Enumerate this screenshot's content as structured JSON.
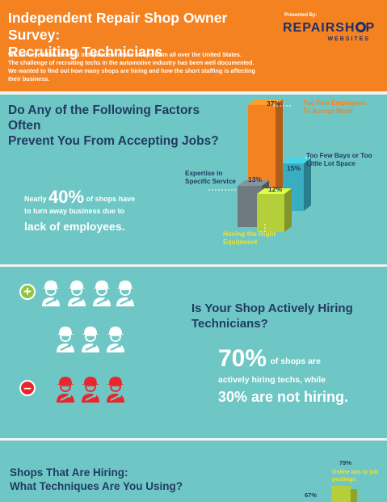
{
  "header": {
    "title_line1": "Independent Repair Shop Owner Survey:",
    "title_line2": "Recruiting Technicians",
    "intro_line1": "We surveyed 160 General independent repair shops from all over the United States.",
    "intro_line2": "The challenge of recruiting techs in the automotive industry has been well documented.",
    "intro_line3": "We wanted to find out how many shops are hiring and how the short staffing is affecting",
    "intro_line4": "their business.",
    "logo_presented": "Presented By:",
    "logo_name_a": "REPAIRSH",
    "logo_name_b": "P",
    "logo_sub": "WEBSITES"
  },
  "section1": {
    "question_line1": "Do Any of the Following Factors Often",
    "question_line2": "Prevent You From Accepting Jobs?",
    "stat_prefix": "Nearly",
    "stat_value": "40%",
    "stat_suffix": "of shops have",
    "stat_line2": "to turn away business due to",
    "stat_line3": "lack of employees."
  },
  "chart_data": {
    "type": "bar",
    "categories": [
      "Too Few Employees To Accept Work",
      "Too Few Bays or Too Little Lot Space",
      "Expertise in Specific Service",
      "Having the Right Equipment"
    ],
    "values": [
      37,
      15,
      13,
      12
    ],
    "value_labels": [
      "37%",
      "15%",
      "13%",
      "12%"
    ],
    "label_lines": [
      [
        "Too Few Employees",
        "To Accept Work"
      ],
      [
        "Too Few Bays or Too",
        "Little Lot Space"
      ],
      [
        "Expertise in",
        "Specific Service"
      ],
      [
        "Having the Right",
        "Equipment"
      ]
    ],
    "colors": [
      "#f58220",
      "#3aaec1",
      "#6d7a7f",
      "#b5cf3a"
    ],
    "label_colors": [
      "#f58220",
      "#233a63",
      "#233a63",
      "#f7e11b"
    ],
    "ylim": [
      0,
      37
    ]
  },
  "section2": {
    "plus_sign": "+",
    "minus_sign": "–",
    "hiring_share": 0.7,
    "hiring_icon_count": 7,
    "not_hiring_icon_count": 3,
    "question_line1": "Is Your Shop Actively Hiring",
    "question_line2": "Technicians?",
    "stat_value": "70%",
    "stat_suffix": "of shops are",
    "stat_line2": "actively hiring techs, while",
    "stat_line3": "30% are not hiring.",
    "hiring_color": "#ffffff",
    "not_hiring_color": "#e8262b"
  },
  "section3": {
    "question_line1": "Shops That Are Hiring:",
    "question_line2": "What Techniques Are You Using?",
    "bar1_value": "79%",
    "bar1_label_line1": "Online ads or job",
    "bar1_label_line2": "postings",
    "bar2_value": "67%"
  }
}
